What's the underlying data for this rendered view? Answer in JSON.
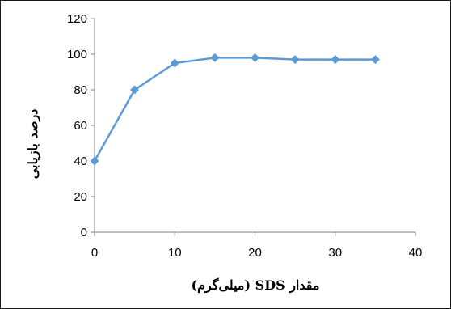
{
  "chart_data": {
    "type": "line",
    "title": "",
    "xlabel": "مقدار SDS (میلی‌گرم)",
    "ylabel": "درصد بازیابی",
    "xlim": [
      0,
      40
    ],
    "ylim": [
      0,
      120
    ],
    "x_ticks": [
      "0",
      "10",
      "20",
      "30",
      "40"
    ],
    "y_ticks": [
      "0",
      "20",
      "40",
      "60",
      "80",
      "100",
      "120"
    ],
    "grid": false,
    "legend": "none",
    "series": [
      {
        "x": [
          0,
          5,
          10,
          15,
          20,
          25,
          30,
          35
        ],
        "values": [
          40,
          80,
          95,
          98,
          98,
          97,
          97,
          97
        ]
      }
    ],
    "colors": {
      "series": "#5b9bd5",
      "axis": "#7f7f7f"
    }
  }
}
